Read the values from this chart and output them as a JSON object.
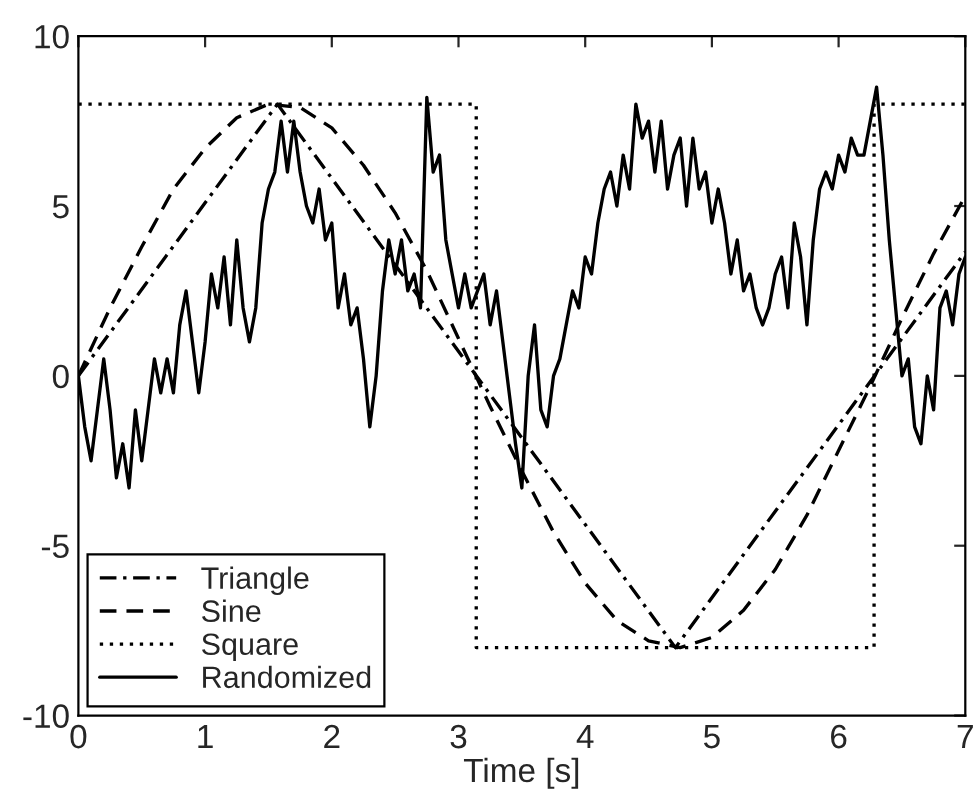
{
  "chart_data": {
    "type": "line",
    "xlabel": "Time [s]",
    "xlim": [
      0,
      7
    ],
    "xticks": [
      0,
      1,
      2,
      3,
      4,
      5,
      6,
      7
    ],
    "ylim": [
      -10,
      10
    ],
    "yticks": [
      -10,
      -5,
      0,
      5,
      10
    ],
    "grid": false,
    "legend": "bottom left",
    "marker": "none",
    "series": [
      {
        "name": "Triangle",
        "color": "#000000",
        "line_style": "dashdot",
        "x": [
          0,
          1.571,
          4.712,
          6.283,
          7
        ],
        "values": [
          0,
          8,
          -8,
          0,
          3.65
        ]
      },
      {
        "name": "Sine",
        "color": "#000000",
        "line_style": "dashed",
        "x": [
          0,
          0.25,
          0.5,
          0.75,
          1.0,
          1.25,
          1.5,
          1.75,
          2.0,
          2.25,
          2.5,
          2.75,
          3.0,
          3.25,
          3.5,
          3.75,
          4.0,
          4.25,
          4.5,
          4.75,
          5.0,
          5.25,
          5.5,
          5.75,
          6.0,
          6.25,
          6.5,
          6.75,
          7.0
        ],
        "values": [
          0,
          2.0,
          3.8,
          5.5,
          6.7,
          7.6,
          8.0,
          7.9,
          7.3,
          6.2,
          4.8,
          3.1,
          1.1,
          -0.9,
          -2.8,
          -4.6,
          -6.1,
          -7.2,
          -7.8,
          -8.0,
          -7.7,
          -6.9,
          -5.7,
          -4.1,
          -2.2,
          -0.3,
          1.7,
          3.6,
          5.3
        ]
      },
      {
        "name": "Square",
        "color": "#000000",
        "line_style": "dotted",
        "x": [
          0,
          3.14,
          3.14,
          6.28,
          6.28,
          7
        ],
        "values": [
          8,
          8,
          -8,
          -8,
          8,
          8
        ]
      },
      {
        "name": "Randomized",
        "color": "#000000",
        "line_style": "solid",
        "x": [
          0.0,
          0.05,
          0.1,
          0.15,
          0.2,
          0.25,
          0.3,
          0.35,
          0.4,
          0.45,
          0.5,
          0.55,
          0.6,
          0.65,
          0.7,
          0.75,
          0.8,
          0.85,
          0.9,
          0.95,
          1.0,
          1.05,
          1.1,
          1.15,
          1.2,
          1.25,
          1.3,
          1.35,
          1.4,
          1.45,
          1.5,
          1.55,
          1.6,
          1.65,
          1.7,
          1.75,
          1.8,
          1.85,
          1.9,
          1.95,
          2.0,
          2.05,
          2.1,
          2.15,
          2.2,
          2.25,
          2.3,
          2.35,
          2.4,
          2.45,
          2.5,
          2.55,
          2.6,
          2.65,
          2.7,
          2.75,
          2.8,
          2.85,
          2.9,
          2.95,
          3.0,
          3.05,
          3.1,
          3.2,
          3.25,
          3.3,
          3.35,
          3.4,
          3.45,
          3.5,
          3.55,
          3.6,
          3.65,
          3.7,
          3.75,
          3.8,
          3.85,
          3.9,
          3.95,
          4.0,
          4.05,
          4.1,
          4.15,
          4.2,
          4.25,
          4.3,
          4.35,
          4.4,
          4.45,
          4.5,
          4.55,
          4.6,
          4.65,
          4.7,
          4.75,
          4.8,
          4.85,
          4.9,
          4.95,
          5.0,
          5.05,
          5.1,
          5.15,
          5.2,
          5.25,
          5.3,
          5.35,
          5.4,
          5.45,
          5.5,
          5.55,
          5.6,
          5.65,
          5.7,
          5.75,
          5.8,
          5.85,
          5.9,
          5.95,
          6.0,
          6.05,
          6.1,
          6.15,
          6.2,
          6.3,
          6.35,
          6.4,
          6.45,
          6.5,
          6.55,
          6.6,
          6.65,
          6.7,
          6.75,
          6.8,
          6.85,
          6.9,
          6.95,
          7.0
        ],
        "values": [
          0,
          -1.5,
          -2.5,
          -1,
          0.5,
          -1,
          -3,
          -2,
          -3.3,
          -1,
          -2.5,
          -1,
          0.5,
          -0.5,
          0.5,
          -0.5,
          1.5,
          2.5,
          1,
          -0.5,
          1,
          3,
          2,
          3.5,
          1.5,
          4,
          2,
          1,
          2,
          4.5,
          5.5,
          6,
          7.5,
          6,
          7.5,
          6,
          5,
          4.5,
          5.5,
          4,
          4.5,
          2,
          3,
          1.5,
          2,
          0.5,
          -1.5,
          0,
          2.5,
          4,
          3,
          4,
          2.5,
          3,
          2,
          8.2,
          6,
          6.5,
          4,
          3,
          2,
          3,
          2,
          3,
          1.5,
          2.5,
          1,
          -0.5,
          -2,
          -3.3,
          0,
          1.5,
          -1,
          -1.5,
          0,
          0.5,
          1.5,
          2.5,
          2,
          3.5,
          3,
          4.5,
          5.5,
          6,
          5,
          6.5,
          5.5,
          8,
          7,
          7.5,
          6,
          7.5,
          5.5,
          6.5,
          7,
          5,
          7,
          5.5,
          6,
          4.5,
          5.5,
          4.5,
          3,
          4,
          2.5,
          3,
          2,
          1.5,
          2,
          3,
          3.5,
          2,
          4.5,
          3.5,
          1.5,
          4,
          5.5,
          6,
          5.5,
          6.5,
          6,
          7,
          6.5,
          6.5,
          8.5,
          6.5,
          4,
          2,
          0,
          0.5,
          -1.5,
          -2,
          0,
          -1,
          2,
          2.5,
          1.5,
          3,
          3.5
        ]
      }
    ]
  }
}
